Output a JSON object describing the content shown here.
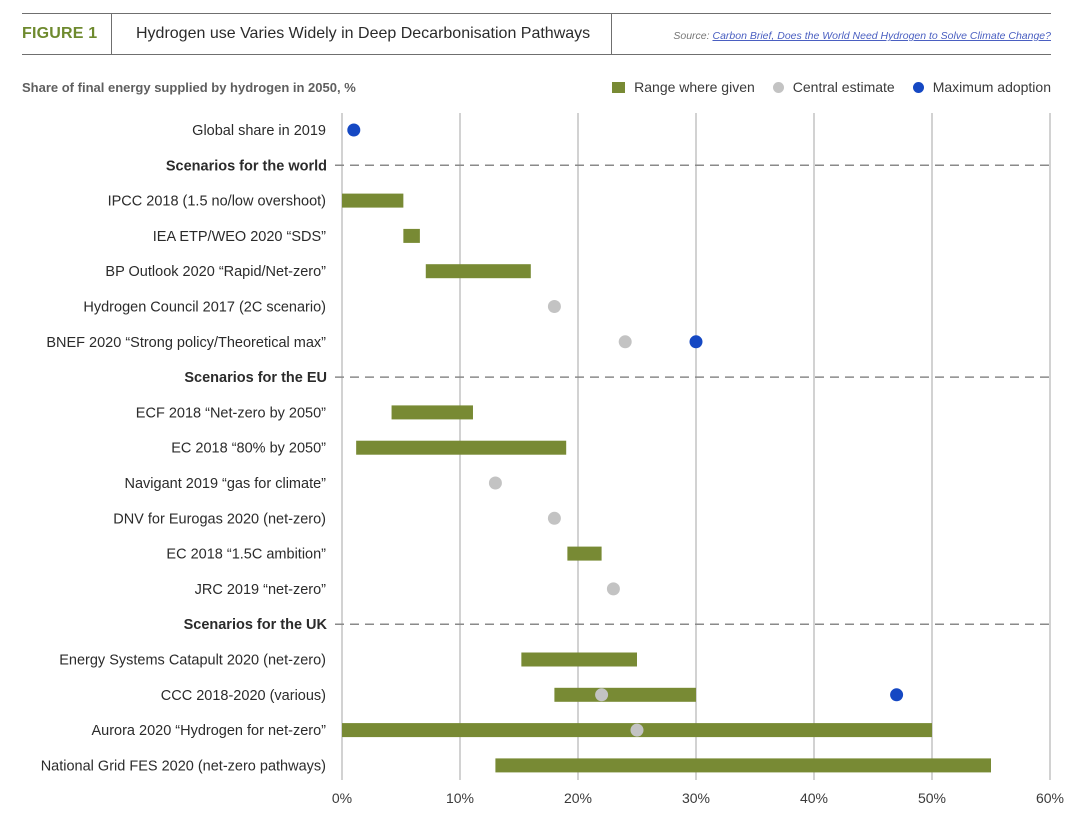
{
  "header": {
    "figure_label": "FIGURE 1",
    "title": "Hydrogen use Varies Widely in Deep Decarbonisation Pathways",
    "source_prefix": "Source:",
    "source_link": "Carbon Brief, Does the World Need Hydrogen to Solve Climate Change?"
  },
  "colors": {
    "range": "#788a34",
    "central": "#c3c3c3",
    "maximum": "#1548c3",
    "grid": "#a5a5a5",
    "accent_label": "#6e8a2e"
  },
  "legend": {
    "range": "Range where given",
    "central": "Central estimate",
    "maximum": "Maximum adoption"
  },
  "chart_data": {
    "type": "range-dot",
    "ylabel": "Share of final energy supplied by hydrogen in 2050, %",
    "xlim": [
      0,
      60
    ],
    "x_ticks": [
      "0%",
      "10%",
      "20%",
      "30%",
      "40%",
      "50%",
      "60%"
    ],
    "grid": "vertical",
    "legend_position": "top-right",
    "rows": [
      {
        "label": "Global share in 2019",
        "kind": "item",
        "range": null,
        "central": null,
        "maximum": 1
      },
      {
        "label": "Scenarios for the world",
        "kind": "section"
      },
      {
        "label": "IPCC 2018 (1.5 no/low overshoot)",
        "kind": "item",
        "range": [
          0,
          5.2
        ],
        "central": null,
        "maximum": null
      },
      {
        "label": "IEA ETP/WEO 2020 “SDS”",
        "kind": "item",
        "range": [
          5.2,
          6.6
        ],
        "central": null,
        "maximum": null
      },
      {
        "label": "BP Outlook 2020 “Rapid/Net-zero”",
        "kind": "item",
        "range": [
          7.1,
          16
        ],
        "central": null,
        "maximum": null
      },
      {
        "label": "Hydrogen Council 2017 (2C scenario)",
        "kind": "item",
        "range": null,
        "central": 18,
        "maximum": null
      },
      {
        "label": "BNEF 2020 “Strong policy/Theoretical max”",
        "kind": "item",
        "range": null,
        "central": 24,
        "maximum": 30
      },
      {
        "label": "Scenarios for the EU",
        "kind": "section"
      },
      {
        "label": "ECF 2018 “Net-zero by 2050”",
        "kind": "item",
        "range": [
          4.2,
          11.1
        ],
        "central": null,
        "maximum": null
      },
      {
        "label": "EC 2018 “80% by 2050”",
        "kind": "item",
        "range": [
          1.2,
          19
        ],
        "central": null,
        "maximum": null
      },
      {
        "label": "Navigant 2019 “gas for climate”",
        "kind": "item",
        "range": null,
        "central": 13,
        "maximum": null
      },
      {
        "label": "DNV for Eurogas 2020 (net-zero)",
        "kind": "item",
        "range": null,
        "central": 18,
        "maximum": null
      },
      {
        "label": "EC 2018 “1.5C ambition”",
        "kind": "item",
        "range": [
          19.1,
          22
        ],
        "central": null,
        "maximum": null
      },
      {
        "label": "JRC 2019 “net-zero”",
        "kind": "item",
        "range": null,
        "central": 23,
        "maximum": null
      },
      {
        "label": "Scenarios for the UK",
        "kind": "section"
      },
      {
        "label": "Energy Systems Catapult 2020 (net-zero)",
        "kind": "item",
        "range": [
          15.2,
          25
        ],
        "central": null,
        "maximum": null
      },
      {
        "label": "CCC 2018-2020 (various)",
        "kind": "item",
        "range": [
          18,
          30
        ],
        "central": 22,
        "maximum": 47
      },
      {
        "label": "Aurora 2020 “Hydrogen for net-zero”",
        "kind": "item",
        "range": [
          0,
          50
        ],
        "central": 25,
        "maximum": null
      },
      {
        "label": "National Grid FES 2020 (net-zero pathways)",
        "kind": "item",
        "range": [
          13,
          55
        ],
        "central": null,
        "maximum": null
      }
    ]
  }
}
